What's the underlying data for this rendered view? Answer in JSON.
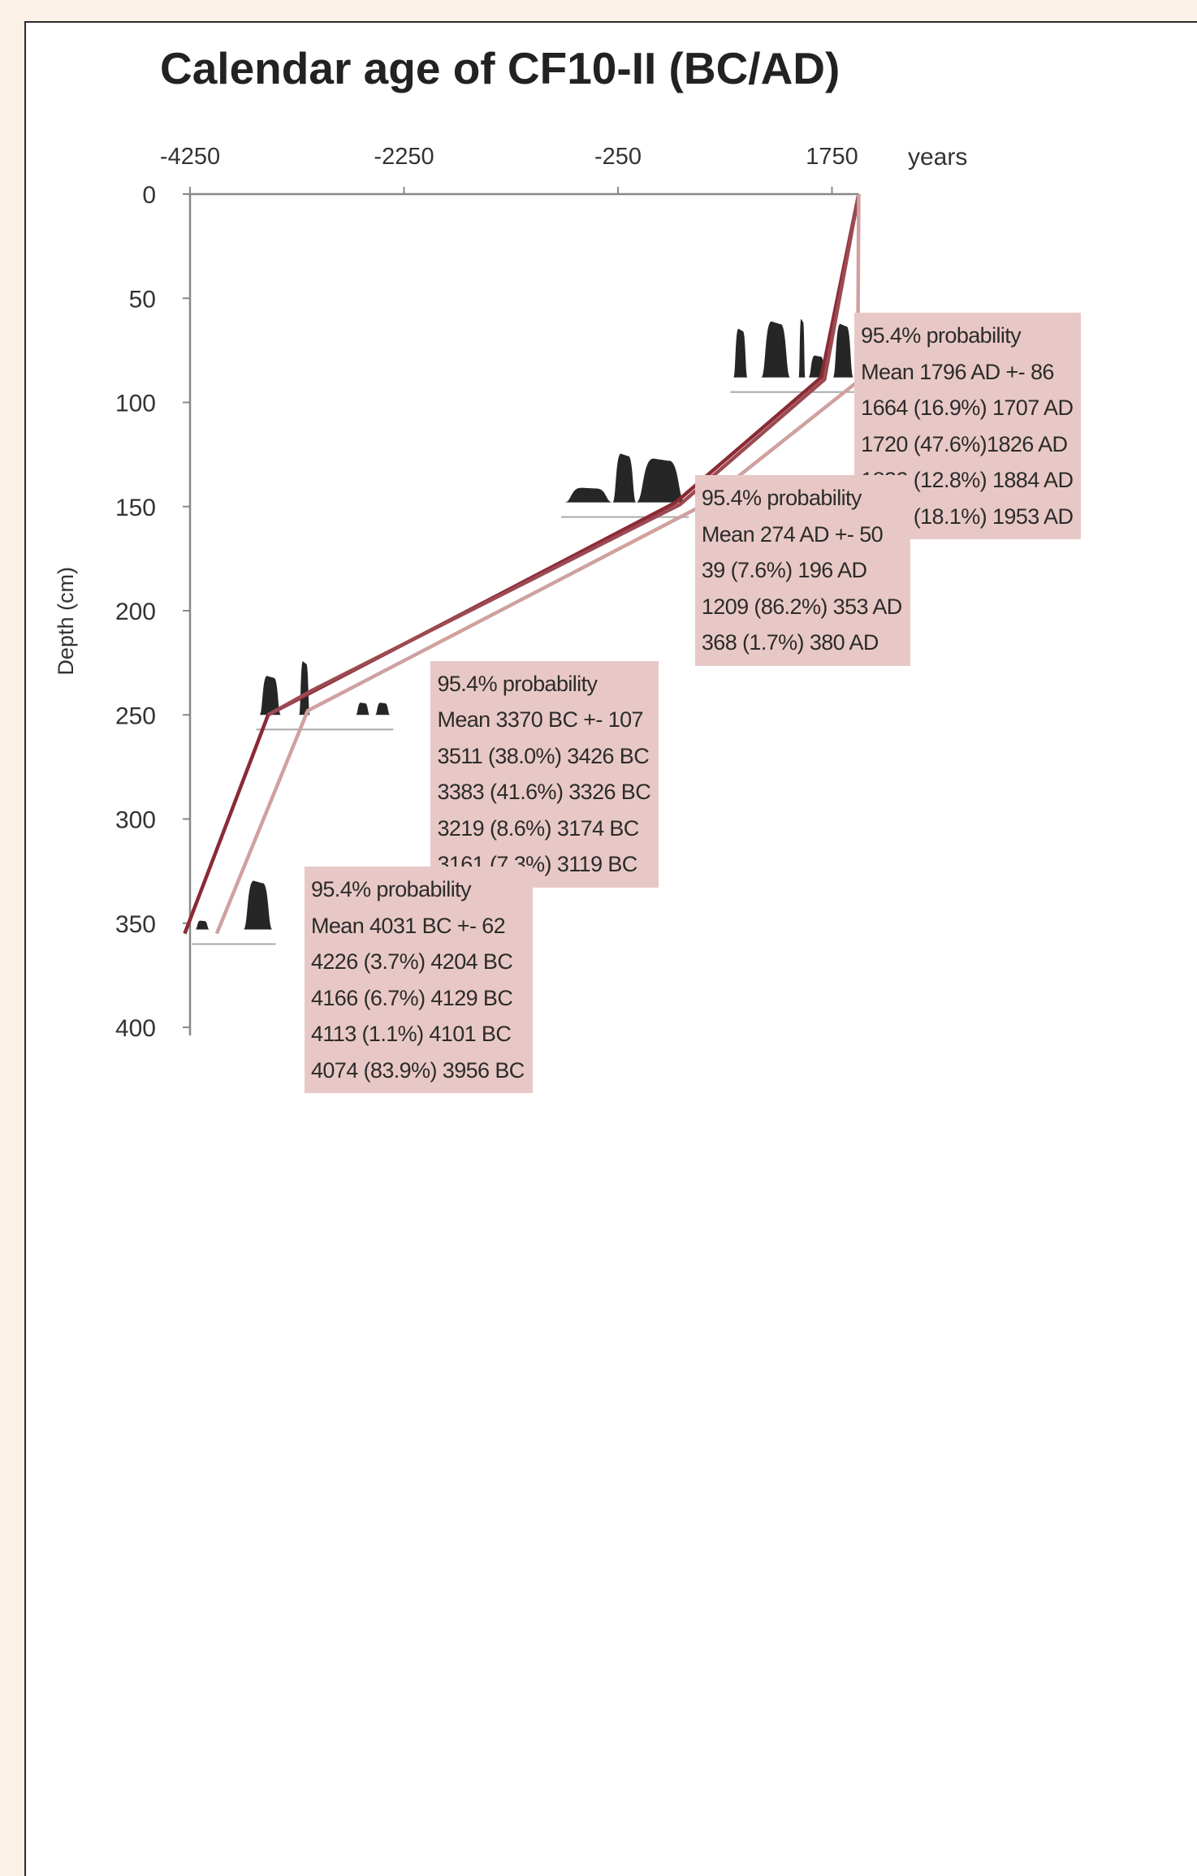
{
  "chart_data": {
    "type": "line",
    "title": "Calendar age of CF10-II (BC/AD)",
    "xlabel": "years",
    "ylabel": "Depth (cm)",
    "x_ticks": [
      -4250,
      -2250,
      -250,
      1750
    ],
    "y_ticks": [
      0,
      50,
      100,
      150,
      200,
      250,
      300,
      350,
      400
    ],
    "xlim": [
      -4250,
      2250
    ],
    "ylim": [
      0,
      400
    ],
    "y_inverted": true,
    "x_axis_position": "top",
    "grid": false,
    "legend": "none",
    "series": [
      {
        "color": "#8b2a35",
        "x": [
          2000,
          1650,
          290,
          -3520,
          -4300
        ],
        "y": [
          0,
          88,
          148,
          250,
          355
        ]
      },
      {
        "color": "#9c4a52",
        "x": [
          2000,
          1680,
          330,
          -3100,
          -3520
        ],
        "y": [
          0,
          89,
          149,
          238,
          250
        ]
      },
      {
        "color": "#cfa1a0",
        "x": [
          2000,
          1990,
          520,
          -3150,
          -4000
        ],
        "y": [
          0,
          90,
          150,
          248,
          355
        ]
      }
    ],
    "probability_distributions": [
      {
        "depth": 88,
        "baseline_depth": 88,
        "peaks": [
          {
            "from": 830,
            "to": 960,
            "height": 1.0
          },
          {
            "from": 1090,
            "to": 1360,
            "height": 1.15
          },
          {
            "from": 1440,
            "to": 1500,
            "height": 1.2
          },
          {
            "from": 1530,
            "to": 1700,
            "height": 0.45
          },
          {
            "from": 1760,
            "to": 1950,
            "height": 1.1
          }
        ]
      },
      {
        "depth": 148,
        "baseline_depth": 148,
        "peaks": [
          {
            "from": -750,
            "to": -300,
            "height": 0.3
          },
          {
            "from": -300,
            "to": -80,
            "height": 1.0
          },
          {
            "from": -80,
            "to": 380,
            "height": 0.9
          }
        ]
      },
      {
        "depth": 250,
        "baseline_depth": 250,
        "peaks": [
          {
            "from": -3600,
            "to": -3400,
            "height": 0.8
          },
          {
            "from": -3230,
            "to": -3130,
            "height": 1.1
          },
          {
            "from": -2700,
            "to": -2570,
            "height": 0.25
          },
          {
            "from": -2520,
            "to": -2380,
            "height": 0.25
          }
        ]
      },
      {
        "depth": 353,
        "baseline_depth": 353,
        "peaks": [
          {
            "from": -4200,
            "to": -4070,
            "height": 0.18
          },
          {
            "from": -3750,
            "to": -3480,
            "height": 1.0
          }
        ]
      }
    ],
    "annotations": [
      {
        "anchor_x": 1960,
        "anchor_y": 57,
        "lines": [
          "95.4% probability",
          "Mean 1796 AD +- 86",
          "1664 (16.9%) 1707 AD",
          "1720 (47.6%)1826 AD",
          "1832 (12.8%) 1884 AD",
          "1914 (18.1%) 1953 AD"
        ]
      },
      {
        "anchor_x": 470,
        "anchor_y": 135,
        "lines": [
          "95.4% probability",
          "Mean 274 AD +- 50",
          "39 (7.6%) 196 AD",
          "1209 (86.2%) 353 AD",
          "368 (1.7%) 380 AD"
        ]
      },
      {
        "anchor_x": -2000,
        "anchor_y": 224,
        "lines": [
          "95.4% probability",
          "Mean 3370 BC +- 107",
          "3511 (38.0%) 3426 BC",
          "3383 (41.6%) 3326 BC",
          "3219 (8.6%) 3174 BC",
          "3161 (7.3%) 3119 BC"
        ]
      },
      {
        "anchor_x": -3180,
        "anchor_y": 323,
        "lines": [
          "95.4% probability",
          "Mean 4031 BC +- 62",
          "4226 (3.7%) 4204 BC",
          "4166 (6.7%) 4129 BC",
          "4113 (1.1%) 4101 BC",
          "4074 (83.9%) 3956 BC"
        ]
      }
    ]
  }
}
